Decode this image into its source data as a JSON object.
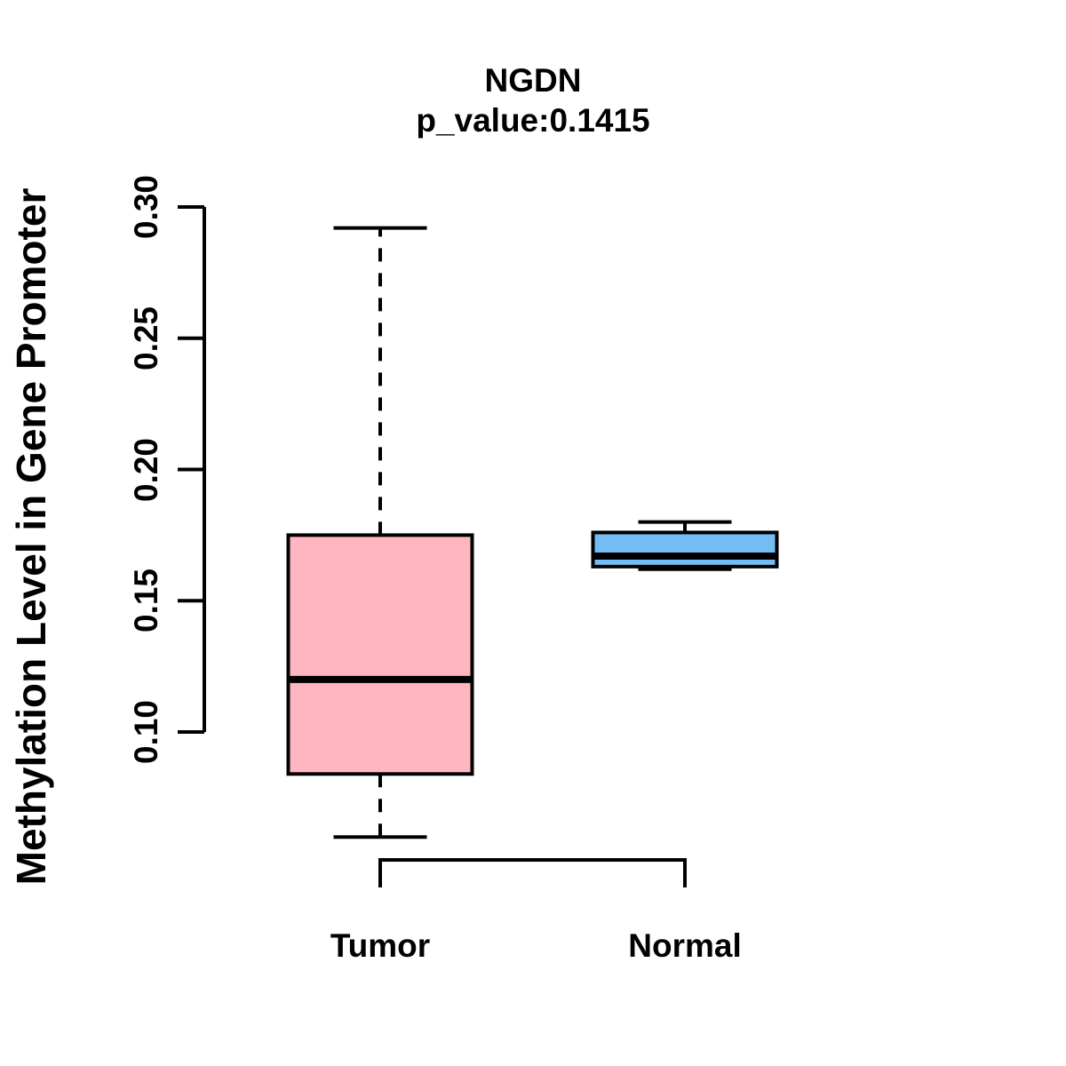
{
  "chart_data": {
    "type": "boxplot",
    "title": "NGDN",
    "subtitle": "p_value:0.1415",
    "ylabel": "Methylation Level in Gene Promoter",
    "xlabel": "",
    "categories": [
      "Tumor",
      "Normal"
    ],
    "y_axis": {
      "tick_labels": [
        "0.10",
        "0.15",
        "0.20",
        "0.25",
        "0.30"
      ],
      "tick_values": [
        0.1,
        0.15,
        0.2,
        0.25,
        0.3
      ],
      "range_shown": [
        0.1,
        0.3
      ]
    },
    "grid": false,
    "legend": "none",
    "whisker_line_style": "dashed",
    "box_border_color": "#000000",
    "median_color": "#000000",
    "axis_color": "#000000",
    "background_color": "#FFFFFF",
    "series": [
      {
        "name": "Tumor",
        "fill_color": "#FFB6C1",
        "whisker_low": 0.06,
        "q1": 0.084,
        "median": 0.12,
        "q3": 0.175,
        "whisker_high": 0.292
      },
      {
        "name": "Normal",
        "fill_color": "#73BCF4",
        "whisker_low": 0.162,
        "q1": 0.163,
        "median": 0.167,
        "q3": 0.176,
        "whisker_high": 0.18
      }
    ]
  }
}
